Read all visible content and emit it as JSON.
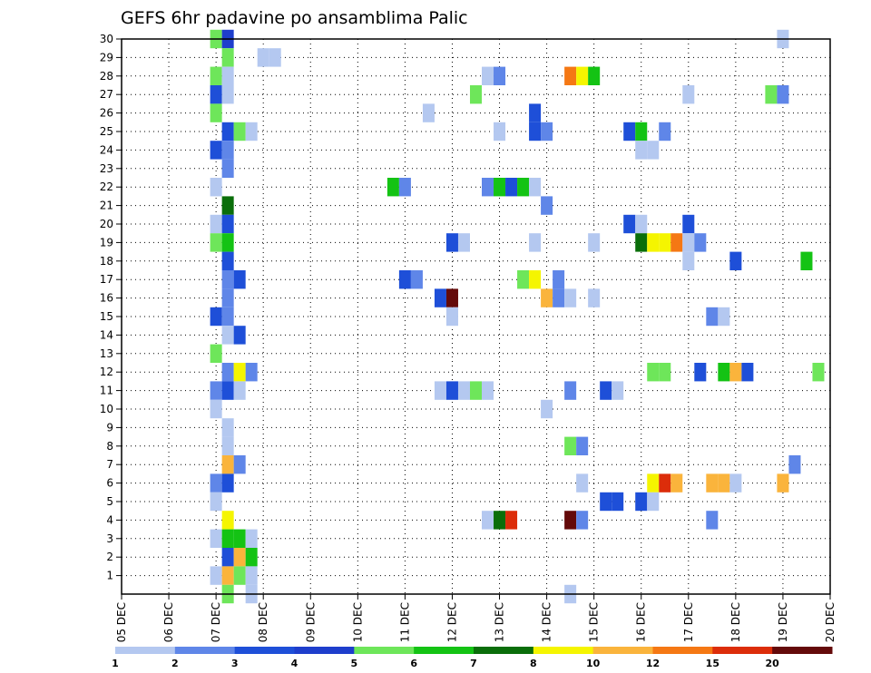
{
  "chart_data": {
    "type": "heatmap",
    "title": "GEFS 6hr padavine po ansamblima Palic",
    "xlabel": "",
    "ylabel": "",
    "x_tick_labels": [
      "05 DEC",
      "06 DEC",
      "07 DEC",
      "08 DEC",
      "09 DEC",
      "10 DEC",
      "11 DEC",
      "12 DEC",
      "13 DEC",
      "14 DEC",
      "15 DEC",
      "16 DEC",
      "17 DEC",
      "18 DEC",
      "19 DEC",
      "20 DEC"
    ],
    "x_range_days": [
      5,
      20
    ],
    "step_hours": 6,
    "y_range": [
      0,
      30
    ],
    "y_tick_labels": [
      "1",
      "2",
      "3",
      "4",
      "5",
      "6",
      "7",
      "8",
      "9",
      "10",
      "11",
      "12",
      "13",
      "14",
      "15",
      "16",
      "17",
      "18",
      "19",
      "20",
      "21",
      "22",
      "23",
      "24",
      "25",
      "26",
      "27",
      "28",
      "29",
      "30"
    ],
    "grid": "dotted",
    "legend_placement": "bottom",
    "colorbar": {
      "labels": [
        "1",
        "2",
        "3",
        "4",
        "5",
        "6",
        "7",
        "8",
        "10",
        "12",
        "15",
        "20"
      ],
      "colors": [
        "#b4c8f0",
        "#5f86e8",
        "#1e4fd8",
        "#1e3ecc",
        "#6ee65a",
        "#14c314",
        "#0a6e0a",
        "#f5f500",
        "#fab43c",
        "#f57814",
        "#dc2d0a",
        "#640a0a"
      ]
    },
    "cells_note": "each cell: member, day (DEC, fractional, 6-hourly), color level index into colorbar",
    "cells": [
      [
        30,
        7.0,
        4
      ],
      [
        30,
        7.25,
        3
      ],
      [
        30,
        19.0,
        0
      ],
      [
        29,
        7.25,
        4
      ],
      [
        29,
        8.0,
        0
      ],
      [
        29,
        8.25,
        0
      ],
      [
        28,
        7.0,
        4
      ],
      [
        28,
        7.25,
        0
      ],
      [
        28,
        12.75,
        0
      ],
      [
        28,
        13.0,
        1
      ],
      [
        28,
        14.5,
        9
      ],
      [
        28,
        14.75,
        7
      ],
      [
        28,
        15.0,
        5
      ],
      [
        27,
        7.0,
        2
      ],
      [
        27,
        7.25,
        0
      ],
      [
        27,
        12.5,
        4
      ],
      [
        27,
        17.0,
        0
      ],
      [
        27,
        18.75,
        4
      ],
      [
        27,
        19.0,
        1
      ],
      [
        26,
        7.0,
        4
      ],
      [
        26,
        11.5,
        0
      ],
      [
        26,
        13.75,
        2
      ],
      [
        25,
        7.25,
        2
      ],
      [
        25,
        7.5,
        4
      ],
      [
        25,
        7.75,
        0
      ],
      [
        25,
        13.0,
        0
      ],
      [
        25,
        13.75,
        2
      ],
      [
        25,
        14.0,
        1
      ],
      [
        25,
        15.75,
        2
      ],
      [
        25,
        16.0,
        5
      ],
      [
        25,
        16.5,
        1
      ],
      [
        24,
        7.0,
        2
      ],
      [
        24,
        7.25,
        1
      ],
      [
        24,
        16.0,
        0
      ],
      [
        24,
        16.25,
        0
      ],
      [
        23,
        7.25,
        1
      ],
      [
        22,
        7.0,
        0
      ],
      [
        22,
        10.75,
        5
      ],
      [
        22,
        11.0,
        1
      ],
      [
        22,
        12.75,
        1
      ],
      [
        22,
        13.0,
        5
      ],
      [
        22,
        13.25,
        2
      ],
      [
        22,
        13.5,
        5
      ],
      [
        22,
        13.75,
        0
      ],
      [
        21,
        7.25,
        6
      ],
      [
        21,
        14.0,
        1
      ],
      [
        20,
        7.0,
        0
      ],
      [
        20,
        7.25,
        2
      ],
      [
        20,
        15.75,
        2
      ],
      [
        20,
        16.0,
        0
      ],
      [
        20,
        17.0,
        2
      ],
      [
        19,
        7.0,
        4
      ],
      [
        19,
        7.25,
        5
      ],
      [
        19,
        12.0,
        2
      ],
      [
        19,
        12.25,
        0
      ],
      [
        19,
        13.75,
        0
      ],
      [
        19,
        15.0,
        0
      ],
      [
        19,
        16.0,
        6
      ],
      [
        19,
        16.25,
        7
      ],
      [
        19,
        16.5,
        7
      ],
      [
        19,
        16.75,
        9
      ],
      [
        19,
        17.0,
        0
      ],
      [
        19,
        17.25,
        1
      ],
      [
        18,
        7.25,
        2
      ],
      [
        18,
        17.0,
        0
      ],
      [
        18,
        18.0,
        2
      ],
      [
        18,
        19.5,
        5
      ],
      [
        17,
        7.25,
        1
      ],
      [
        17,
        7.5,
        2
      ],
      [
        17,
        11.0,
        2
      ],
      [
        17,
        11.25,
        1
      ],
      [
        17,
        13.5,
        4
      ],
      [
        17,
        13.75,
        7
      ],
      [
        17,
        14.25,
        1
      ],
      [
        16,
        7.25,
        1
      ],
      [
        16,
        11.75,
        2
      ],
      [
        16,
        12.0,
        11
      ],
      [
        16,
        14.0,
        8
      ],
      [
        16,
        14.25,
        1
      ],
      [
        16,
        14.5,
        0
      ],
      [
        16,
        15.0,
        0
      ],
      [
        15,
        7.0,
        2
      ],
      [
        15,
        7.25,
        1
      ],
      [
        15,
        12.0,
        0
      ],
      [
        15,
        17.5,
        1
      ],
      [
        15,
        17.75,
        0
      ],
      [
        14,
        7.25,
        0
      ],
      [
        14,
        7.5,
        2
      ],
      [
        13,
        7.0,
        4
      ],
      [
        12,
        7.25,
        1
      ],
      [
        12,
        7.5,
        7
      ],
      [
        12,
        7.75,
        1
      ],
      [
        12,
        16.25,
        4
      ],
      [
        12,
        16.5,
        4
      ],
      [
        12,
        17.25,
        2
      ],
      [
        12,
        17.75,
        5
      ],
      [
        12,
        18.0,
        8
      ],
      [
        12,
        18.25,
        2
      ],
      [
        12,
        19.75,
        4
      ],
      [
        11,
        7.0,
        1
      ],
      [
        11,
        7.25,
        2
      ],
      [
        11,
        7.5,
        0
      ],
      [
        11,
        11.75,
        0
      ],
      [
        11,
        12.0,
        2
      ],
      [
        11,
        12.25,
        0
      ],
      [
        11,
        12.5,
        4
      ],
      [
        11,
        12.75,
        0
      ],
      [
        11,
        14.5,
        1
      ],
      [
        11,
        15.25,
        2
      ],
      [
        11,
        15.5,
        0
      ],
      [
        10,
        7.0,
        0
      ],
      [
        10,
        14.0,
        0
      ],
      [
        9,
        7.25,
        0
      ],
      [
        8,
        7.25,
        0
      ],
      [
        8,
        14.5,
        4
      ],
      [
        8,
        14.75,
        1
      ],
      [
        7,
        7.25,
        8
      ],
      [
        7,
        7.5,
        1
      ],
      [
        7,
        19.25,
        1
      ],
      [
        6,
        7.0,
        1
      ],
      [
        6,
        7.25,
        2
      ],
      [
        6,
        14.75,
        0
      ],
      [
        6,
        16.25,
        7
      ],
      [
        6,
        16.5,
        10
      ],
      [
        6,
        16.75,
        8
      ],
      [
        6,
        17.5,
        8
      ],
      [
        6,
        17.75,
        8
      ],
      [
        6,
        18.0,
        0
      ],
      [
        6,
        19.0,
        8
      ],
      [
        5,
        7.0,
        0
      ],
      [
        5,
        15.25,
        2
      ],
      [
        5,
        15.5,
        2
      ],
      [
        5,
        16.0,
        2
      ],
      [
        5,
        16.25,
        0
      ],
      [
        4,
        7.25,
        7
      ],
      [
        4,
        12.75,
        0
      ],
      [
        4,
        13.0,
        6
      ],
      [
        4,
        13.25,
        10
      ],
      [
        4,
        14.5,
        11
      ],
      [
        4,
        14.75,
        1
      ],
      [
        4,
        17.5,
        1
      ],
      [
        3,
        7.0,
        0
      ],
      [
        3,
        7.25,
        5
      ],
      [
        3,
        7.5,
        5
      ],
      [
        3,
        7.75,
        0
      ],
      [
        2,
        7.25,
        2
      ],
      [
        2,
        7.5,
        8
      ],
      [
        2,
        7.75,
        5
      ],
      [
        1,
        7.0,
        0
      ],
      [
        1,
        7.25,
        8
      ],
      [
        1,
        7.5,
        4
      ],
      [
        1,
        7.75,
        0
      ],
      [
        0,
        7.25,
        4
      ],
      [
        0,
        7.75,
        0
      ],
      [
        0,
        14.5,
        0
      ]
    ]
  }
}
